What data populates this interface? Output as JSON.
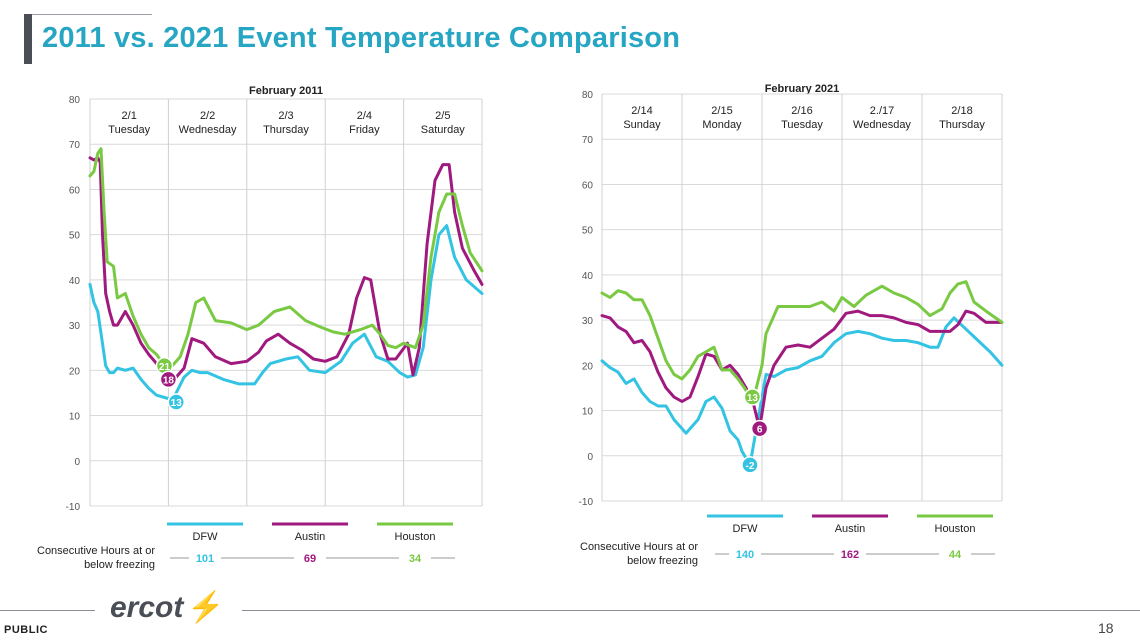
{
  "title": "2011 vs. 2021 Event Temperature Comparison",
  "footer": {
    "classification": "PUBLIC",
    "logo_text": "ercot",
    "page_number": "18"
  },
  "colors": {
    "dfw": "#33c3e3",
    "austin": "#a0197f",
    "houston": "#7ac943",
    "title": "#27a6c4"
  },
  "consecutive_label_line1": "Consecutive Hours at or",
  "consecutive_label_line2": "below freezing",
  "chart_data": [
    {
      "type": "line",
      "title": "February 2011",
      "ylim": [
        -10,
        80
      ],
      "yticks": [
        -10,
        0,
        10,
        20,
        30,
        40,
        50,
        60,
        70,
        80
      ],
      "xlim": [
        0,
        5
      ],
      "days": [
        {
          "date": "2/1",
          "weekday": "Tuesday"
        },
        {
          "date": "2/2",
          "weekday": "Wednesday"
        },
        {
          "date": "2/3",
          "weekday": "Thursday"
        },
        {
          "date": "2/4",
          "weekday": "Friday"
        },
        {
          "date": "2/5",
          "weekday": "Saturday"
        }
      ],
      "series": [
        {
          "name": "DFW",
          "color_key": "dfw",
          "x": [
            0,
            0.05,
            0.1,
            0.15,
            0.2,
            0.25,
            0.3,
            0.35,
            0.45,
            0.55,
            0.65,
            0.75,
            0.85,
            0.95,
            1.05,
            1.1,
            1.2,
            1.3,
            1.4,
            1.5,
            1.7,
            1.9,
            2.1,
            2.2,
            2.3,
            2.5,
            2.65,
            2.8,
            3.0,
            3.2,
            3.35,
            3.5,
            3.65,
            3.8,
            3.95,
            4.05,
            4.15,
            4.25,
            4.35,
            4.45,
            4.55,
            4.65,
            4.8,
            5.0
          ],
          "y": [
            39,
            35,
            33,
            27,
            21,
            19.5,
            19.5,
            20.5,
            20,
            20.5,
            18,
            16,
            14.5,
            14,
            13.5,
            15,
            18.5,
            20,
            19.5,
            19.5,
            18,
            17,
            17,
            19.5,
            21.5,
            22.5,
            23,
            20,
            19.5,
            22,
            26,
            28,
            23,
            22,
            19.5,
            18.5,
            19,
            25,
            40,
            50,
            52,
            45,
            40,
            37
          ]
        },
        {
          "name": "Austin",
          "color_key": "austin",
          "x": [
            0,
            0.05,
            0.1,
            0.13,
            0.16,
            0.2,
            0.25,
            0.3,
            0.35,
            0.45,
            0.55,
            0.65,
            0.75,
            0.85,
            0.95,
            1.05,
            1.1,
            1.2,
            1.3,
            1.45,
            1.6,
            1.8,
            2.0,
            2.15,
            2.25,
            2.4,
            2.55,
            2.7,
            2.85,
            3.0,
            3.15,
            3.3,
            3.4,
            3.5,
            3.58,
            3.7,
            3.8,
            3.9,
            4.05,
            4.12,
            4.2,
            4.3,
            4.4,
            4.5,
            4.58,
            4.65,
            4.75,
            4.9,
            5.0
          ],
          "y": [
            67,
            66.5,
            67,
            66,
            50,
            37,
            33,
            30,
            30,
            33,
            30,
            26,
            23.5,
            21.5,
            19,
            18,
            18.5,
            20.5,
            27,
            26,
            23,
            21.5,
            22,
            24,
            26.5,
            28,
            26,
            24.5,
            22.5,
            22,
            23,
            28,
            36,
            40.5,
            40,
            28,
            22.5,
            22.5,
            26,
            19,
            25,
            48,
            62,
            65.5,
            65.5,
            55,
            47,
            42,
            39
          ]
        },
        {
          "name": "Houston",
          "color_key": "houston",
          "x": [
            0,
            0.05,
            0.1,
            0.14,
            0.18,
            0.22,
            0.3,
            0.35,
            0.45,
            0.55,
            0.65,
            0.75,
            0.85,
            0.95,
            1.05,
            1.15,
            1.25,
            1.35,
            1.45,
            1.6,
            1.8,
            2.0,
            2.15,
            2.35,
            2.55,
            2.75,
            2.95,
            3.1,
            3.25,
            3.45,
            3.6,
            3.7,
            3.8,
            3.9,
            4.0,
            4.15,
            4.25,
            4.35,
            4.45,
            4.55,
            4.65,
            4.75,
            4.85,
            5.0
          ],
          "y": [
            63,
            64,
            68,
            69,
            55,
            44,
            43,
            36,
            37,
            32,
            28,
            25,
            23.5,
            21,
            21,
            23,
            28,
            35,
            36,
            31,
            30.5,
            29,
            30,
            33,
            34,
            31,
            29.5,
            28.5,
            28,
            29,
            30,
            28,
            25.5,
            25,
            26,
            25,
            30,
            45,
            55,
            59,
            59,
            52,
            46,
            42
          ]
        }
      ],
      "annotations": [
        {
          "series": "Houston",
          "x": 0.95,
          "y": 21,
          "label": "21"
        },
        {
          "series": "Austin",
          "x": 1.0,
          "y": 18,
          "label": "18"
        },
        {
          "series": "DFW",
          "x": 1.1,
          "y": 13,
          "label": "13"
        }
      ],
      "consecutive_hours": [
        {
          "name": "DFW",
          "value": "101"
        },
        {
          "name": "Austin",
          "value": "69"
        },
        {
          "name": "Houston",
          "value": "34"
        }
      ]
    },
    {
      "type": "line",
      "title": "February 2021",
      "ylim": [
        -10,
        80
      ],
      "yticks": [
        -10,
        0,
        10,
        20,
        30,
        40,
        50,
        60,
        70,
        80
      ],
      "xlim": [
        0,
        5
      ],
      "days": [
        {
          "date": "2/14",
          "weekday": "Sunday"
        },
        {
          "date": "2/15",
          "weekday": "Monday"
        },
        {
          "date": "2/16",
          "weekday": "Tuesday"
        },
        {
          "date": "2./17",
          "weekday": "Wednesday"
        },
        {
          "date": "2/18",
          "weekday": "Thursday"
        }
      ],
      "series": [
        {
          "name": "DFW",
          "color_key": "dfw",
          "x": [
            0,
            0.1,
            0.2,
            0.3,
            0.4,
            0.5,
            0.6,
            0.7,
            0.8,
            0.9,
            1.0,
            1.05,
            1.15,
            1.2,
            1.3,
            1.4,
            1.5,
            1.6,
            1.7,
            1.75,
            1.85,
            1.95,
            2.05,
            2.15,
            2.3,
            2.45,
            2.6,
            2.75,
            2.9,
            3.05,
            3.2,
            3.35,
            3.5,
            3.65,
            3.8,
            3.95,
            4.1,
            4.2,
            4.3,
            4.4,
            4.55,
            4.7,
            4.85,
            5.0
          ],
          "y": [
            21,
            19.5,
            18.5,
            16,
            17,
            14,
            12,
            11,
            11,
            8,
            6,
            5,
            7,
            8,
            12,
            13,
            10.5,
            5.5,
            3.5,
            1,
            -2,
            8,
            18,
            17.5,
            19,
            19.5,
            21,
            22,
            25,
            27,
            27.5,
            27,
            26,
            25.5,
            25.5,
            25,
            24,
            24,
            28.5,
            30.5,
            28,
            25.5,
            23,
            20
          ]
        },
        {
          "name": "Austin",
          "color_key": "austin",
          "x": [
            0,
            0.1,
            0.2,
            0.3,
            0.4,
            0.5,
            0.6,
            0.7,
            0.8,
            0.9,
            1.0,
            1.1,
            1.2,
            1.3,
            1.4,
            1.5,
            1.6,
            1.7,
            1.8,
            1.9,
            1.97,
            2.05,
            2.15,
            2.3,
            2.45,
            2.6,
            2.75,
            2.9,
            3.05,
            3.2,
            3.35,
            3.5,
            3.65,
            3.8,
            3.95,
            4.1,
            4.25,
            4.35,
            4.45,
            4.55,
            4.65,
            4.8,
            5.0
          ],
          "y": [
            31,
            30.5,
            28.5,
            27.5,
            25,
            25.5,
            23,
            18.5,
            15,
            13,
            12,
            13,
            17.5,
            22.5,
            22,
            19,
            20,
            18,
            15,
            11,
            6,
            15,
            20,
            24,
            24.5,
            24,
            26,
            28,
            31.5,
            32,
            31,
            31,
            30.5,
            29.5,
            29,
            27.5,
            27.5,
            27.5,
            29,
            32,
            31.5,
            29.5,
            29.5
          ]
        },
        {
          "name": "Houston",
          "color_key": "houston",
          "x": [
            0,
            0.1,
            0.2,
            0.3,
            0.4,
            0.5,
            0.6,
            0.7,
            0.8,
            0.9,
            1.0,
            1.1,
            1.2,
            1.3,
            1.4,
            1.5,
            1.6,
            1.7,
            1.78,
            1.85,
            1.9,
            2.0,
            2.05,
            2.2,
            2.4,
            2.6,
            2.75,
            2.9,
            3.0,
            3.15,
            3.3,
            3.5,
            3.65,
            3.8,
            3.95,
            4.1,
            4.25,
            4.35,
            4.45,
            4.55,
            4.65,
            4.8,
            5.0
          ],
          "y": [
            36,
            35,
            36.5,
            36,
            34.5,
            34.5,
            31,
            26,
            21,
            18,
            17,
            19,
            22,
            23,
            24,
            19,
            19,
            17,
            15,
            13,
            13,
            20,
            27,
            33,
            33,
            33,
            34,
            32,
            35,
            33,
            35.5,
            37.5,
            36,
            35,
            33.5,
            31,
            32.5,
            36,
            38,
            38.5,
            34,
            32,
            29.5
          ]
        }
      ],
      "annotations": [
        {
          "series": "Houston",
          "x": 1.88,
          "y": 13,
          "label": "13"
        },
        {
          "series": "Austin",
          "x": 1.97,
          "y": 6,
          "label": "6"
        },
        {
          "series": "DFW",
          "x": 1.85,
          "y": -2,
          "label": "-2"
        }
      ],
      "consecutive_hours": [
        {
          "name": "DFW",
          "value": "140"
        },
        {
          "name": "Austin",
          "value": "162"
        },
        {
          "name": "Houston",
          "value": "44"
        }
      ]
    }
  ]
}
